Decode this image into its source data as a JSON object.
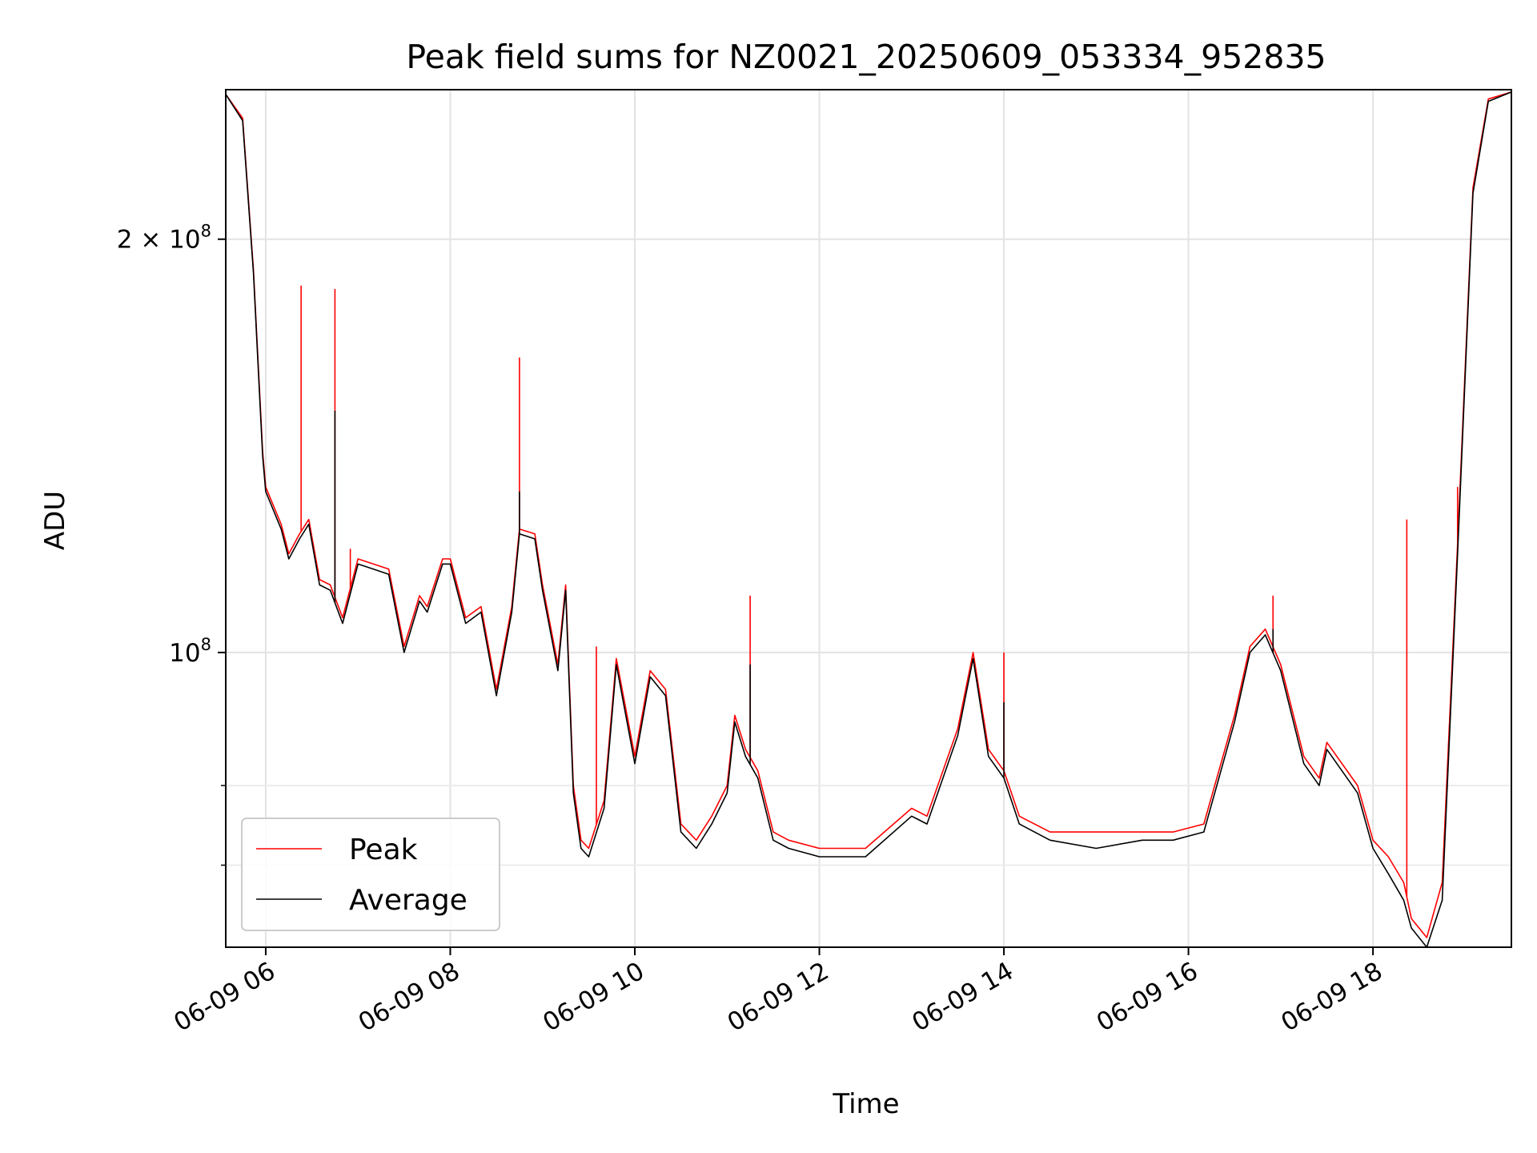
{
  "chart_data": {
    "type": "line",
    "title": "Peak field sums for NZ0021_20250609_053334_952835",
    "xlabel": "Time",
    "ylabel": "ADU",
    "y_scale": "log",
    "xlim": [
      "2025-06-09T05:34",
      "2025-06-09T19:30"
    ],
    "ylim": [
      61000000,
      257000000
    ],
    "x_ticks": [
      "06-09 06",
      "06-09 08",
      "06-09 10",
      "06-09 12",
      "06-09 14",
      "06-09 16",
      "06-09 18"
    ],
    "y_tick_labels": [
      {
        "value": 200000000,
        "base": "2 × 10",
        "exp": "8"
      },
      {
        "value": 100000000,
        "base": "10",
        "exp": "8"
      }
    ],
    "grid": true,
    "legend_position": "lower-left",
    "series": [
      {
        "name": "Peak",
        "color": "#ff0000",
        "x": [
          "05:34",
          "05:45",
          "05:52",
          "05:58",
          "06:00",
          "06:10",
          "06:15",
          "06:22",
          "06:28",
          "06:35",
          "06:42",
          "06:50",
          "07:00",
          "07:10",
          "07:20",
          "07:30",
          "07:40",
          "07:45",
          "07:55",
          "08:00",
          "08:10",
          "08:20",
          "08:30",
          "08:40",
          "08:45",
          "08:55",
          "09:00",
          "09:10",
          "09:15",
          "09:20",
          "09:25",
          "09:30",
          "09:40",
          "09:48",
          "10:00",
          "10:10",
          "10:20",
          "10:30",
          "10:40",
          "10:50",
          "11:00",
          "11:05",
          "11:12",
          "11:20",
          "11:30",
          "11:40",
          "12:00",
          "12:30",
          "13:00",
          "13:10",
          "13:30",
          "13:40",
          "13:50",
          "14:00",
          "14:10",
          "14:30",
          "15:00",
          "15:30",
          "15:50",
          "16:10",
          "16:30",
          "16:40",
          "16:50",
          "17:00",
          "17:15",
          "17:25",
          "17:30",
          "17:50",
          "18:00",
          "18:10",
          "18:20",
          "18:25",
          "18:35",
          "18:45",
          "18:55",
          "19:05",
          "19:15",
          "19:30"
        ],
        "y": [
          255000000,
          245000000,
          190000000,
          140000000,
          132000000,
          124000000,
          118000000,
          122000000,
          125000000,
          113000000,
          112000000,
          106000000,
          117000000,
          116000000,
          115000000,
          101000000,
          110000000,
          108000000,
          117000000,
          117000000,
          106000000,
          108000000,
          94000000,
          108000000,
          123000000,
          122000000,
          112000000,
          98000000,
          112000000,
          80000000,
          73000000,
          72000000,
          78000000,
          99000000,
          84000000,
          97000000,
          94000000,
          75000000,
          73000000,
          76000000,
          80000000,
          90000000,
          85000000,
          82000000,
          74000000,
          73000000,
          72000000,
          72000000,
          77000000,
          76000000,
          88000000,
          100000000,
          85000000,
          82000000,
          76000000,
          74000000,
          74000000,
          74000000,
          74000000,
          75000000,
          90000000,
          101000000,
          104000000,
          98000000,
          84000000,
          81000000,
          86000000,
          80000000,
          73000000,
          71000000,
          68000000,
          64000000,
          62000000,
          68000000,
          120000000,
          218000000,
          253000000,
          256000000
        ],
        "spikes": [
          {
            "x": "06:23",
            "y": 185000000
          },
          {
            "x": "06:45",
            "y": 184000000
          },
          {
            "x": "08:45",
            "y": 164000000
          },
          {
            "x": "11:15",
            "y": 110000000
          },
          {
            "x": "14:00",
            "y": 100000000
          },
          {
            "x": "16:55",
            "y": 110000000
          },
          {
            "x": "18:22",
            "y": 125000000
          },
          {
            "x": "18:55",
            "y": 132000000
          },
          {
            "x": "09:35",
            "y": 101000000
          },
          {
            "x": "06:55",
            "y": 119000000
          }
        ]
      },
      {
        "name": "Average",
        "color": "#000000",
        "x": [
          "05:34",
          "05:45",
          "05:52",
          "05:58",
          "06:00",
          "06:10",
          "06:15",
          "06:22",
          "06:28",
          "06:35",
          "06:42",
          "06:50",
          "07:00",
          "07:10",
          "07:20",
          "07:30",
          "07:40",
          "07:45",
          "07:55",
          "08:00",
          "08:10",
          "08:20",
          "08:30",
          "08:40",
          "08:45",
          "08:55",
          "09:00",
          "09:10",
          "09:15",
          "09:20",
          "09:25",
          "09:30",
          "09:40",
          "09:48",
          "10:00",
          "10:10",
          "10:20",
          "10:30",
          "10:40",
          "10:50",
          "11:00",
          "11:05",
          "11:12",
          "11:20",
          "11:30",
          "11:40",
          "12:00",
          "12:30",
          "13:00",
          "13:10",
          "13:30",
          "13:40",
          "13:50",
          "14:00",
          "14:10",
          "14:30",
          "15:00",
          "15:30",
          "15:50",
          "16:10",
          "16:30",
          "16:40",
          "16:50",
          "17:00",
          "17:15",
          "17:25",
          "17:30",
          "17:50",
          "18:00",
          "18:10",
          "18:20",
          "18:25",
          "18:35",
          "18:45",
          "18:55",
          "19:05",
          "19:15",
          "19:30"
        ],
        "y": [
          255000000,
          244000000,
          189000000,
          139000000,
          131000000,
          123000000,
          117000000,
          121000000,
          124000000,
          112000000,
          111000000,
          105000000,
          116000000,
          115000000,
          114000000,
          100000000,
          109000000,
          107000000,
          116000000,
          116000000,
          105000000,
          107000000,
          93000000,
          107000000,
          122000000,
          121000000,
          111000000,
          97000000,
          111000000,
          79000000,
          72000000,
          71000000,
          77000000,
          98000000,
          83000000,
          96000000,
          93000000,
          74000000,
          72000000,
          75000000,
          79000000,
          89000000,
          84000000,
          81000000,
          73000000,
          72000000,
          71000000,
          71000000,
          76000000,
          75000000,
          87000000,
          99000000,
          84000000,
          81000000,
          75000000,
          73000000,
          72000000,
          73000000,
          73000000,
          74000000,
          89000000,
          100000000,
          103000000,
          97000000,
          83000000,
          80000000,
          85000000,
          79000000,
          72000000,
          69000000,
          66000000,
          63000000,
          61000000,
          66000000,
          118000000,
          216000000,
          252000000,
          256000000
        ],
        "spikes": [
          {
            "x": "06:45",
            "y": 150000000
          },
          {
            "x": "08:45",
            "y": 131000000
          },
          {
            "x": "11:15",
            "y": 98000000
          },
          {
            "x": "14:00",
            "y": 92000000
          },
          {
            "x": "16:55",
            "y": 104000000
          }
        ]
      }
    ]
  }
}
